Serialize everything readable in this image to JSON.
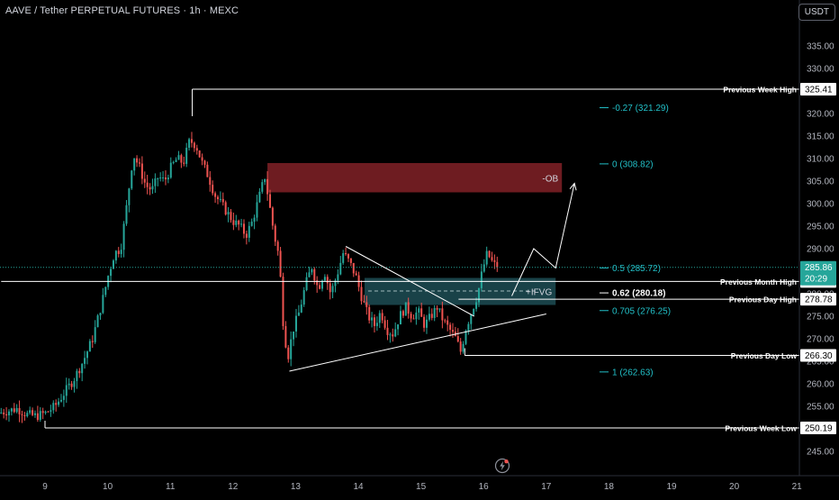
{
  "header": {
    "title": "AAVE / Tether PERPETUAL FUTURES · 1h · MEXC",
    "currency": "USDT"
  },
  "colors": {
    "background": "#000000",
    "candle_up": "#26a69a",
    "candle_down": "#ef5350",
    "fib": "#22c0c8",
    "ob_fill": "#7a1f25",
    "fvg_fill": "#1d4d55",
    "level_line": "#ffffff",
    "price_tag": "#ffffff"
  },
  "chart_data": {
    "type": "candlestick",
    "y_axis": {
      "min": 240,
      "max": 340,
      "ticks": [
        245,
        250,
        255,
        260,
        265,
        270,
        275,
        280,
        285,
        290,
        295,
        300,
        305,
        310,
        315,
        320,
        325,
        330,
        335
      ],
      "tick_labels": [
        "245.00",
        "250.00",
        "255.00",
        "260.00",
        "265.00",
        "270.00",
        "275.00",
        "280.00",
        "285.00",
        "290.00",
        "295.00",
        "300.00",
        "305.00",
        "310.00",
        "315.00",
        "320.00",
        "325.00",
        "330.00",
        "335.00"
      ]
    },
    "x_axis": {
      "min": 8.3,
      "max": 21.0,
      "ticks": [
        9,
        10,
        11,
        12,
        13,
        14,
        15,
        16,
        17,
        18,
        19,
        20,
        21
      ],
      "tick_labels": [
        "9",
        "10",
        "11",
        "12",
        "13",
        "14",
        "15",
        "16",
        "17",
        "18",
        "19",
        "20",
        "21"
      ]
    },
    "price_path": [
      [
        8.3,
        253.5
      ],
      [
        8.45,
        254
      ],
      [
        8.6,
        254.5
      ],
      [
        8.75,
        253.2
      ],
      [
        8.9,
        252.8
      ],
      [
        9.05,
        253.5
      ],
      [
        9.2,
        255
      ],
      [
        9.35,
        258
      ],
      [
        9.5,
        261
      ],
      [
        9.65,
        265
      ],
      [
        9.8,
        270
      ],
      [
        9.95,
        278
      ],
      [
        10.05,
        284
      ],
      [
        10.15,
        289
      ],
      [
        10.25,
        290
      ],
      [
        10.35,
        300
      ],
      [
        10.45,
        311
      ],
      [
        10.55,
        308
      ],
      [
        10.65,
        304
      ],
      [
        10.75,
        303
      ],
      [
        10.85,
        306
      ],
      [
        10.95,
        305
      ],
      [
        11.05,
        308
      ],
      [
        11.15,
        310
      ],
      [
        11.25,
        309
      ],
      [
        11.35,
        314
      ],
      [
        11.45,
        313
      ],
      [
        11.55,
        309
      ],
      [
        11.65,
        306
      ],
      [
        11.75,
        302
      ],
      [
        11.85,
        300
      ],
      [
        11.95,
        298
      ],
      [
        12.05,
        296
      ],
      [
        12.15,
        295
      ],
      [
        12.25,
        293
      ],
      [
        12.35,
        296
      ],
      [
        12.45,
        301
      ],
      [
        12.55,
        306
      ],
      [
        12.62,
        300
      ],
      [
        12.7,
        293
      ],
      [
        12.78,
        288
      ],
      [
        12.85,
        272
      ],
      [
        12.92,
        266
      ],
      [
        13.0,
        272
      ],
      [
        13.1,
        276
      ],
      [
        13.2,
        282
      ],
      [
        13.3,
        286
      ],
      [
        13.4,
        281
      ],
      [
        13.5,
        285
      ],
      [
        13.6,
        280
      ],
      [
        13.7,
        284
      ],
      [
        13.8,
        289
      ],
      [
        13.9,
        287
      ],
      [
        14.0,
        284
      ],
      [
        14.1,
        279
      ],
      [
        14.2,
        275
      ],
      [
        14.3,
        273
      ],
      [
        14.4,
        276
      ],
      [
        14.5,
        272
      ],
      [
        14.6,
        271
      ],
      [
        14.7,
        275
      ],
      [
        14.8,
        277
      ],
      [
        14.9,
        275
      ],
      [
        15.0,
        276
      ],
      [
        15.1,
        273
      ],
      [
        15.2,
        275
      ],
      [
        15.3,
        277
      ],
      [
        15.4,
        274
      ],
      [
        15.5,
        272
      ],
      [
        15.6,
        270
      ],
      [
        15.68,
        267
      ],
      [
        15.75,
        272
      ],
      [
        15.85,
        276
      ],
      [
        15.95,
        280
      ],
      [
        16.02,
        285
      ],
      [
        16.1,
        289
      ],
      [
        16.18,
        287
      ],
      [
        16.25,
        285.86
      ]
    ],
    "projection_path": [
      [
        16.45,
        279.5
      ],
      [
        16.8,
        290
      ],
      [
        17.15,
        285.7
      ],
      [
        17.45,
        304.5
      ]
    ],
    "triangle_upper": [
      [
        13.8,
        290.5
      ],
      [
        15.85,
        275
      ]
    ],
    "triangle_lower": [
      [
        12.9,
        262.8
      ],
      [
        17.0,
        275.5
      ]
    ],
    "zones": [
      {
        "name": "order-block",
        "label": "-OB",
        "x0": 12.55,
        "x1": 17.25,
        "y0": 302.5,
        "y1": 309
      },
      {
        "name": "fair-value-gap",
        "label": "+IFVG",
        "x0": 14.1,
        "x1": 17.15,
        "y0": 277.5,
        "y1": 283.5,
        "mid": 280.6
      }
    ],
    "levels": [
      {
        "name": "previous-week-high",
        "label": "Previous Week High",
        "price": 325.41,
        "tag": "325.41",
        "x_start": 11.35
      },
      {
        "name": "previous-month-high",
        "label": "Previous Month High",
        "price": 282.73,
        "tag": "282.73",
        "x_start": 8.3
      },
      {
        "name": "previous-day-high",
        "label": "Previous Day High",
        "price": 278.78,
        "tag": "278.78",
        "x_start": 15.6
      },
      {
        "name": "previous-day-low",
        "label": "Previous Day Low",
        "price": 266.3,
        "tag": "266.30",
        "x_start": 15.7
      },
      {
        "name": "previous-week-low",
        "label": "Previous Week Low",
        "price": 250.19,
        "tag": "250.19",
        "x_start": 9.0
      }
    ],
    "current_price": {
      "price": 285.86,
      "tag": "285.86",
      "countdown": "20:29"
    },
    "fib_levels": [
      {
        "ratio": "-0.27",
        "price": 321.29,
        "label": "-0.27 (321.29)",
        "highlight": false
      },
      {
        "ratio": "0",
        "price": 308.82,
        "label": "0 (308.82)",
        "highlight": false
      },
      {
        "ratio": "0.5",
        "price": 285.72,
        "label": "0.5 (285.72)",
        "highlight": false
      },
      {
        "ratio": "0.62",
        "price": 280.18,
        "label": "0.62 (280.18)",
        "highlight": true
      },
      {
        "ratio": "0.705",
        "price": 276.25,
        "label": "0.705 (276.25)",
        "highlight": false
      },
      {
        "ratio": "1",
        "price": 262.63,
        "label": "1 (262.63)",
        "highlight": false
      }
    ]
  }
}
